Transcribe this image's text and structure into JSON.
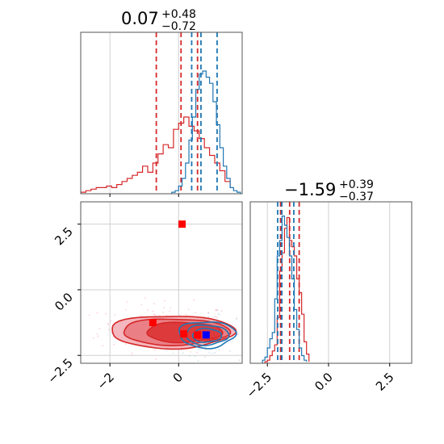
{
  "chart_data": {
    "type": "corner",
    "params": [
      {
        "title_main": "0.07",
        "title_plus": "+0.48",
        "title_minus": "−0.72",
        "xlim": [
          -2.85,
          1.85
        ]
      },
      {
        "title_main": "−1.59",
        "title_plus": "+0.39",
        "title_minus": "−0.37",
        "xlim": [
          -3.2,
          3.4
        ],
        "ylim": [
          -2.8,
          3.35
        ]
      }
    ],
    "axes": {
      "x0_ticks": [
        -2,
        0
      ],
      "x0_tick_labels": [
        "−2",
        "0"
      ],
      "x1_ticks": [
        -2.5,
        0,
        2.5
      ],
      "x1_tick_labels": [
        "−2.5",
        "0.0",
        "2.5"
      ],
      "y1_ticks": [
        2.5,
        0,
        -2.5
      ],
      "y1_tick_labels": [
        "2.5",
        "0.0",
        "−2.5"
      ],
      "grid": true
    },
    "series": [
      {
        "color": "#d62728",
        "p0_quantiles": [
          -0.65,
          0.07,
          0.55
        ],
        "p1_quantiles": [
          -1.96,
          -1.59,
          -1.2
        ],
        "hist_p0": {
          "bins": [
            -2.85,
            -2.7,
            -2.55,
            -2.4,
            -2.25,
            -2.1,
            -1.95,
            -1.8,
            -1.65,
            -1.5,
            -1.35,
            -1.2,
            -1.05,
            -0.9,
            -0.75,
            -0.6,
            -0.45,
            -0.3,
            -0.15,
            0.0,
            0.15,
            0.3,
            0.45,
            0.6,
            0.75,
            0.9,
            1.05,
            1.2,
            1.35,
            1.5
          ],
          "counts": [
            0.01,
            0.02,
            0.03,
            0.04,
            0.04,
            0.05,
            0.04,
            0.06,
            0.08,
            0.1,
            0.12,
            0.14,
            0.18,
            0.14,
            0.2,
            0.26,
            0.32,
            0.3,
            0.42,
            0.46,
            0.5,
            0.44,
            0.41,
            0.36,
            0.3,
            0.25,
            0.2,
            0.15,
            0.08,
            0.04
          ]
        },
        "hist_p1": {
          "bins": [
            -2.6,
            -2.5,
            -2.4,
            -2.3,
            -2.2,
            -2.1,
            -2.0,
            -1.9,
            -1.8,
            -1.7,
            -1.6,
            -1.5,
            -1.4,
            -1.3,
            -1.2,
            -1.1,
            -1.0,
            -0.9,
            -0.8
          ],
          "counts": [
            0.01,
            0.02,
            0.05,
            0.08,
            0.12,
            0.3,
            0.6,
            0.72,
            0.88,
            0.95,
            0.8,
            0.76,
            0.7,
            0.55,
            0.46,
            0.32,
            0.14,
            0.06,
            0.01
          ]
        },
        "markers": [
          [
            -0.75,
            -1.25
          ],
          [
            0.15,
            -1.68
          ],
          [
            0.55,
            -1.72
          ],
          [
            0.1,
            2.5
          ]
        ],
        "scatter_center": [
          -0.35,
          -1.45
        ],
        "scatter_spread": [
          0.7,
          0.35
        ]
      },
      {
        "color": "#1f77b4",
        "p0_quantiles": [
          0.38,
          0.65,
          1.12
        ],
        "p1_quantiles": [
          -2.08,
          -1.91,
          -1.42
        ],
        "hist_p0": {
          "bins": [
            -0.2,
            -0.1,
            0.0,
            0.1,
            0.2,
            0.3,
            0.4,
            0.5,
            0.6,
            0.7,
            0.8,
            0.9,
            1.0,
            1.1,
            1.2,
            1.3,
            1.4,
            1.5,
            1.6,
            1.7,
            1.8
          ],
          "counts": [
            0.01,
            0.02,
            0.05,
            0.1,
            0.2,
            0.35,
            0.5,
            0.68,
            0.78,
            0.8,
            0.76,
            0.72,
            0.6,
            0.45,
            0.3,
            0.18,
            0.1,
            0.04,
            0.02,
            0.01
          ]
        },
        "hist_p1": {
          "bins": [
            -2.7,
            -2.6,
            -2.5,
            -2.4,
            -2.3,
            -2.2,
            -2.1,
            -2.0,
            -1.9,
            -1.8,
            -1.7,
            -1.6,
            -1.5,
            -1.4,
            -1.3,
            -1.2,
            -1.1,
            -1.0,
            -0.9
          ],
          "counts": [
            0.02,
            0.04,
            0.1,
            0.16,
            0.2,
            0.42,
            0.7,
            0.8,
            0.96,
            0.9,
            0.82,
            0.7,
            0.55,
            0.35,
            0.22,
            0.1,
            0.05,
            0.02,
            0.01
          ]
        },
        "markers": [
          [
            0.8,
            -1.72
          ]
        ],
        "scatter_center": [
          0.75,
          -1.75
        ],
        "scatter_spread": [
          0.35,
          0.28
        ]
      }
    ]
  }
}
